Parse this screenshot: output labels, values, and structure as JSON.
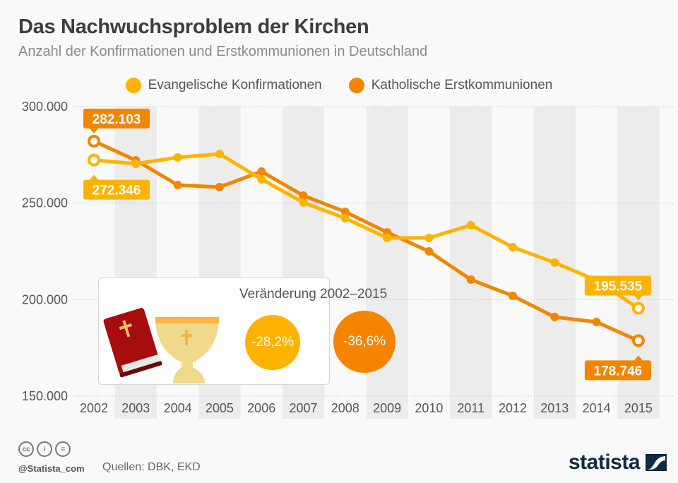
{
  "header": {
    "title": "Das Nachwuchsproblem der Kirchen",
    "subtitle": "Anzahl der Konfirmationen und Erstkommunionen in Deutschland"
  },
  "colors": {
    "evangelisch": "#ffb300",
    "katholisch": "#f58400",
    "band": "#ececec",
    "background": "#f9f9f9",
    "logo": "#0e2a43"
  },
  "chart_data": {
    "type": "line",
    "title": "Das Nachwuchsproblem der Kirchen",
    "subtitle": "Anzahl der Konfirmationen und Erstkommunionen in Deutschland",
    "xlabel": "",
    "ylabel": "",
    "x": [
      "2002",
      "2003",
      "2004",
      "2005",
      "2006",
      "2007",
      "2008",
      "2009",
      "2010",
      "2011",
      "2012",
      "2013",
      "2014",
      "2015"
    ],
    "yticks": [
      "150.000",
      "200.000",
      "250.000",
      "300.000"
    ],
    "ytick_values": [
      150000,
      200000,
      250000,
      300000
    ],
    "ylim": [
      150000,
      300000
    ],
    "grid": true,
    "legend_position": "top-center",
    "series": [
      {
        "name": "Evangelische Konfirmationen",
        "color": "#ffb300",
        "values": [
          272346,
          270400,
          273700,
          275500,
          262400,
          250300,
          242200,
          232000,
          232000,
          238600,
          227200,
          219200,
          210000,
          195535
        ]
      },
      {
        "name": "Katholische Erstkommunionen",
        "color": "#f58400",
        "values": [
          282103,
          272200,
          259400,
          258300,
          266400,
          253900,
          245500,
          234900,
          225000,
          210400,
          202000,
          191000,
          188400,
          178746
        ]
      }
    ],
    "annotations": [
      {
        "series": "Katholische Erstkommunionen",
        "x": "2002",
        "label": "282.103",
        "placement": "above"
      },
      {
        "series": "Evangelische Konfirmationen",
        "x": "2002",
        "label": "272.346",
        "placement": "below"
      },
      {
        "series": "Evangelische Konfirmationen",
        "x": "2015",
        "label": "195.535",
        "placement": "above"
      },
      {
        "series": "Katholische Erstkommunionen",
        "x": "2015",
        "label": "178.746",
        "placement": "below"
      }
    ]
  },
  "inset": {
    "title": "Veränderung 2002–2015",
    "evangelisch_change": "-28,2%",
    "katholisch_change": "-36,6%",
    "icons": [
      "bible-icon",
      "chalice-icon"
    ]
  },
  "footer": {
    "handle": "@Statista_com",
    "source": "Quellen: DBK, EKD",
    "logo_text": "statista",
    "license_icons": [
      "cc",
      "i",
      "="
    ]
  }
}
